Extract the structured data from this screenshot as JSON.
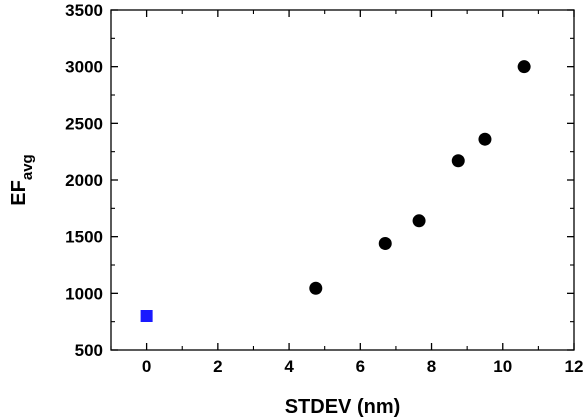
{
  "chart_data": {
    "type": "scatter",
    "title": "",
    "xlabel": "STDEV (nm)",
    "ylabel": "EF",
    "ylabel_subscript": "avg",
    "xlim": [
      -1,
      12
    ],
    "ylim": [
      500,
      3500
    ],
    "xticks": [
      0,
      2,
      4,
      6,
      8,
      10,
      12
    ],
    "yticks": [
      500,
      1000,
      1500,
      2000,
      2500,
      3000,
      3500
    ],
    "grid": false,
    "legend": "none",
    "series": [
      {
        "marker": "square",
        "color": "#1a1aff",
        "points": [
          {
            "x": 0,
            "y": 800
          }
        ]
      },
      {
        "marker": "circle",
        "color": "#000000",
        "points": [
          {
            "x": 4.75,
            "y": 1045
          },
          {
            "x": 6.7,
            "y": 1440
          },
          {
            "x": 7.65,
            "y": 1640
          },
          {
            "x": 8.75,
            "y": 2170
          },
          {
            "x": 9.5,
            "y": 2360
          },
          {
            "x": 10.6,
            "y": 3000
          }
        ]
      }
    ]
  }
}
